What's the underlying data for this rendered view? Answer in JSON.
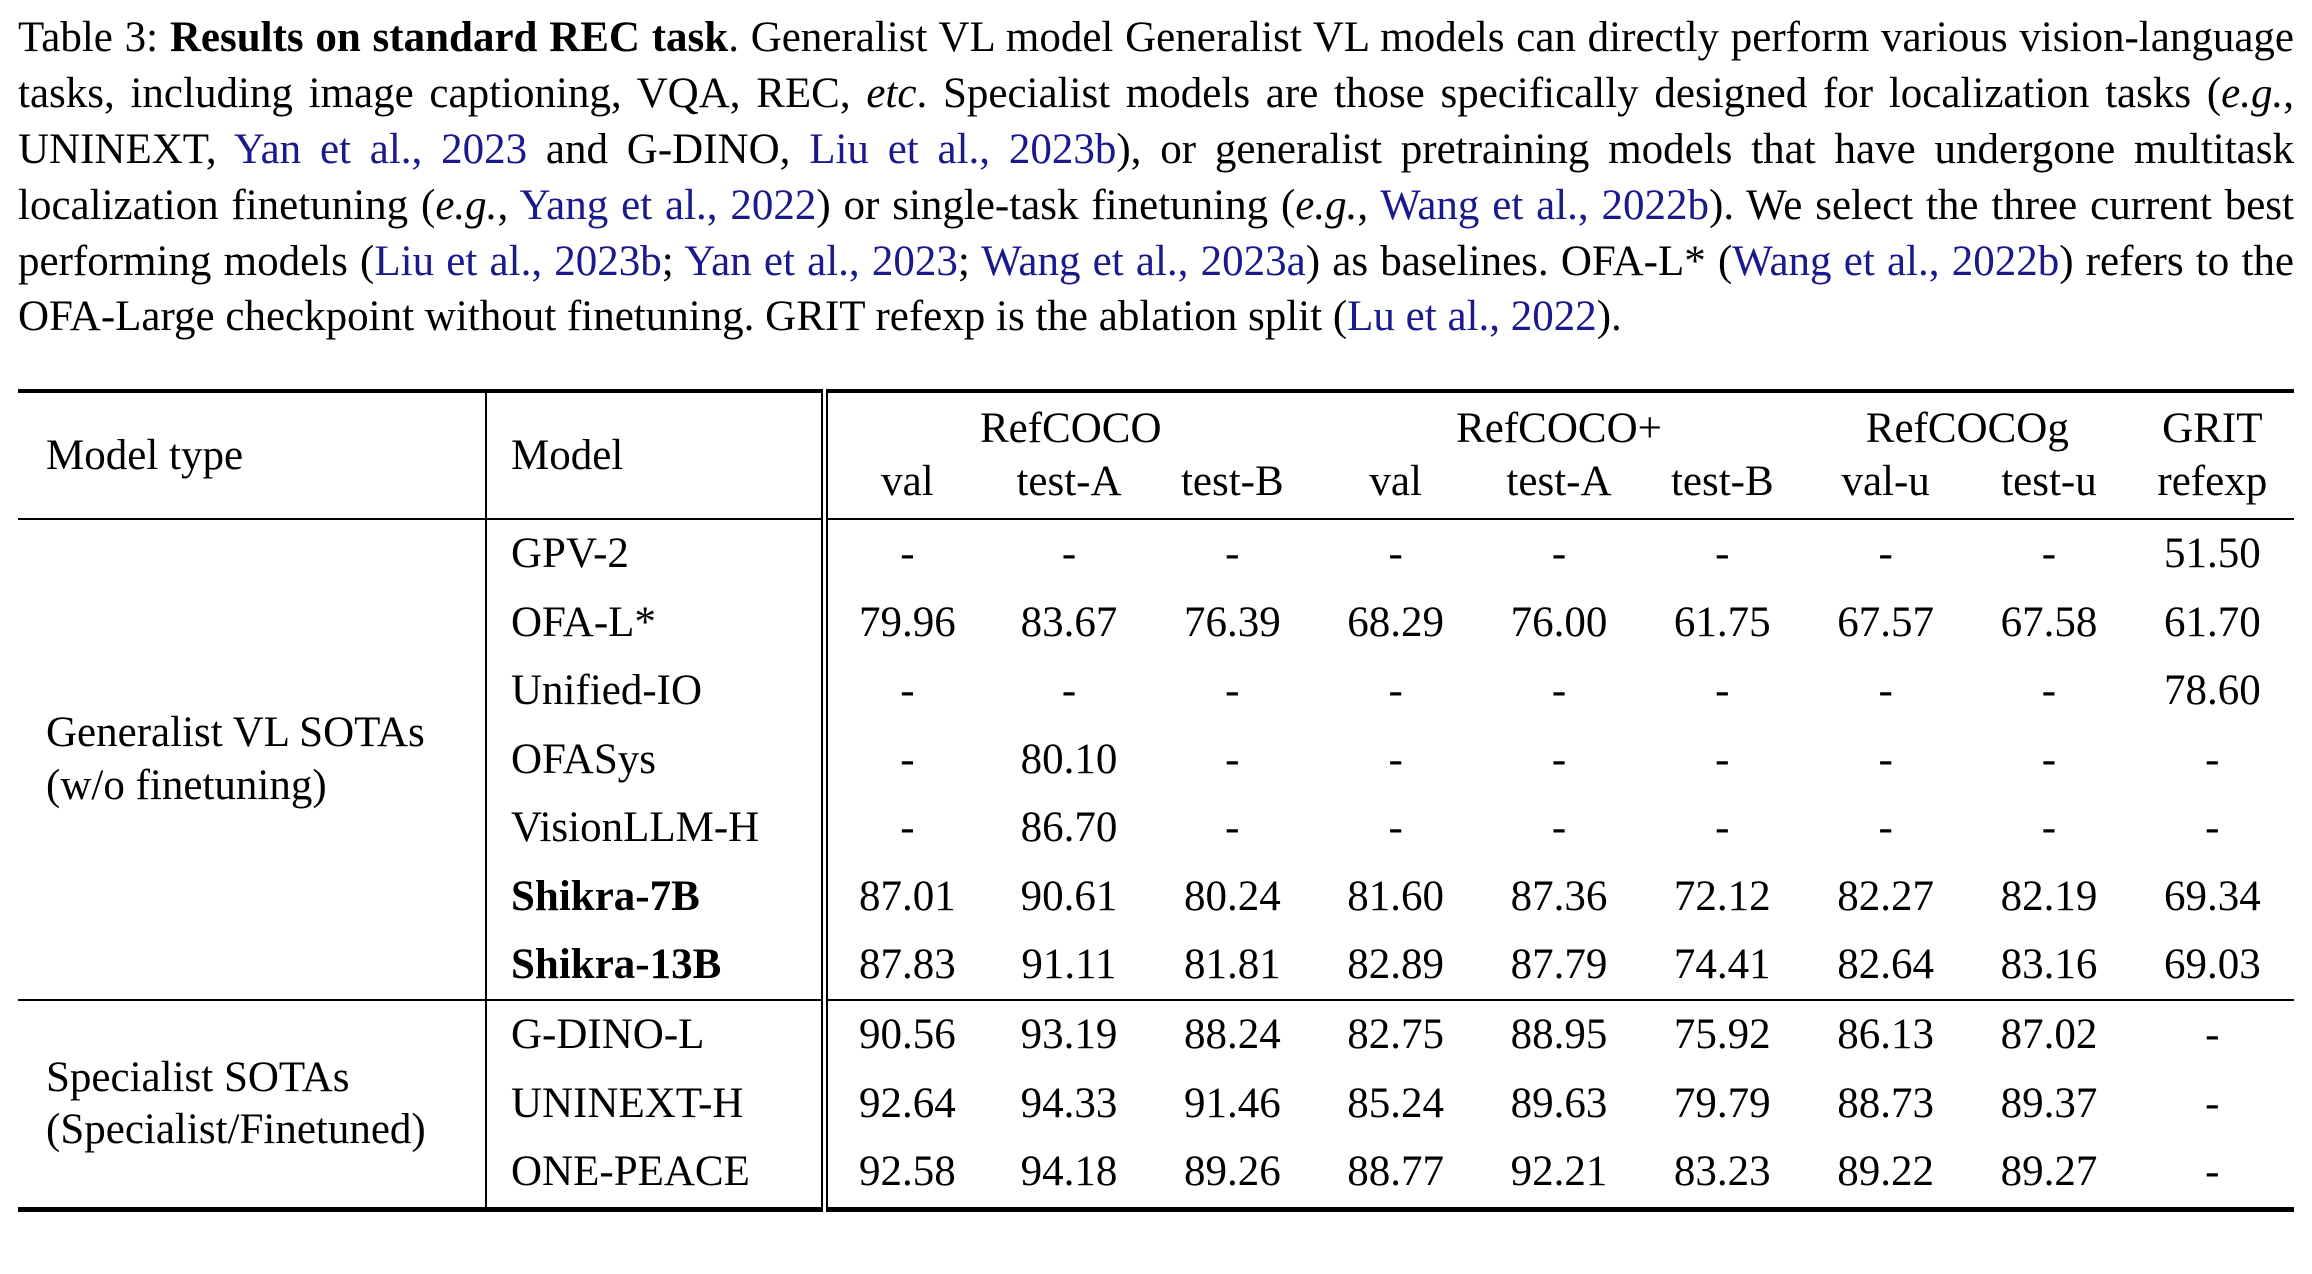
{
  "colors": {
    "link": "#1a1a8c",
    "text": "#000000",
    "background": "#ffffff"
  },
  "caption": {
    "segments": [
      {
        "t": "Table 3: ",
        "s": "normal"
      },
      {
        "t": "Results on standard REC task",
        "s": "bold"
      },
      {
        "t": ". Generalist VL model Generalist VL models can directly perform various vision-language tasks, including image captioning, VQA, REC, ",
        "s": "normal"
      },
      {
        "t": "etc",
        "s": "italic"
      },
      {
        "t": ". Specialist models are those specifically designed for localization tasks (",
        "s": "normal"
      },
      {
        "t": "e.g.",
        "s": "italic"
      },
      {
        "t": ", UNINEXT, ",
        "s": "normal"
      },
      {
        "t": "Yan et al., 2023",
        "s": "link"
      },
      {
        "t": " and G-DINO, ",
        "s": "normal"
      },
      {
        "t": "Liu et al., 2023b",
        "s": "link"
      },
      {
        "t": "), or generalist pretraining models that have undergone multitask localization finetuning (",
        "s": "normal"
      },
      {
        "t": "e.g.",
        "s": "italic"
      },
      {
        "t": ", ",
        "s": "normal"
      },
      {
        "t": "Yang et al., 2022",
        "s": "link"
      },
      {
        "t": ") or single-task finetuning (",
        "s": "normal"
      },
      {
        "t": "e.g.",
        "s": "italic"
      },
      {
        "t": ", ",
        "s": "normal"
      },
      {
        "t": "Wang et al., 2022b",
        "s": "link"
      },
      {
        "t": "). We select the three current best performing models (",
        "s": "normal"
      },
      {
        "t": "Liu et al., 2023b",
        "s": "link"
      },
      {
        "t": "; ",
        "s": "normal"
      },
      {
        "t": "Yan et al., 2023",
        "s": "link"
      },
      {
        "t": "; ",
        "s": "normal"
      },
      {
        "t": "Wang et al., 2023a",
        "s": "link"
      },
      {
        "t": ") as baselines. OFA-L* (",
        "s": "normal"
      },
      {
        "t": "Wang et al., 2022b",
        "s": "link"
      },
      {
        "t": ") refers to the OFA-Large checkpoint without finetuning. GRIT refexp is the ablation split (",
        "s": "normal"
      },
      {
        "t": "Lu et al., 2022",
        "s": "link"
      },
      {
        "t": ").",
        "s": "normal"
      }
    ]
  },
  "table": {
    "col_headers": {
      "model_type": "Model type",
      "model": "Model",
      "groups": [
        {
          "label": "RefCOCO",
          "cols": [
            "val",
            "test-A",
            "test-B"
          ]
        },
        {
          "label": "RefCOCO+",
          "cols": [
            "val",
            "test-A",
            "test-B"
          ]
        },
        {
          "label": "RefCOCOg",
          "cols": [
            "val-u",
            "test-u"
          ]
        },
        {
          "label": "GRIT",
          "cols": [
            "refexp"
          ]
        }
      ]
    },
    "groups": [
      {
        "type_label": [
          "Generalist VL SOTAs",
          "(w/o finetuning)"
        ],
        "rows": [
          {
            "model": "GPV-2",
            "bold": false,
            "values": [
              "-",
              "-",
              "-",
              "-",
              "-",
              "-",
              "-",
              "-",
              "51.50"
            ]
          },
          {
            "model": "OFA-L*",
            "bold": false,
            "values": [
              "79.96",
              "83.67",
              "76.39",
              "68.29",
              "76.00",
              "61.75",
              "67.57",
              "67.58",
              "61.70"
            ]
          },
          {
            "model": "Unified-IO",
            "bold": false,
            "values": [
              "-",
              "-",
              "-",
              "-",
              "-",
              "-",
              "-",
              "-",
              "78.60"
            ]
          },
          {
            "model": "OFASys",
            "bold": false,
            "values": [
              "-",
              "80.10",
              "-",
              "-",
              "-",
              "-",
              "-",
              "-",
              "-"
            ]
          },
          {
            "model": "VisionLLM-H",
            "bold": false,
            "values": [
              "-",
              "86.70",
              "-",
              "-",
              "-",
              "-",
              "-",
              "-",
              "-"
            ]
          },
          {
            "model": "Shikra-7B",
            "bold": true,
            "values": [
              "87.01",
              "90.61",
              "80.24",
              "81.60",
              "87.36",
              "72.12",
              "82.27",
              "82.19",
              "69.34"
            ]
          },
          {
            "model": "Shikra-13B",
            "bold": true,
            "values": [
              "87.83",
              "91.11",
              "81.81",
              "82.89",
              "87.79",
              "74.41",
              "82.64",
              "83.16",
              "69.03"
            ]
          }
        ]
      },
      {
        "type_label": [
          "Specialist SOTAs",
          "(Specialist/Finetuned)"
        ],
        "rows": [
          {
            "model": "G-DINO-L",
            "bold": false,
            "values": [
              "90.56",
              "93.19",
              "88.24",
              "82.75",
              "88.95",
              "75.92",
              "86.13",
              "87.02",
              "-"
            ]
          },
          {
            "model": "UNINEXT-H",
            "bold": false,
            "values": [
              "92.64",
              "94.33",
              "91.46",
              "85.24",
              "89.63",
              "79.79",
              "88.73",
              "89.37",
              "-"
            ]
          },
          {
            "model": "ONE-PEACE",
            "bold": false,
            "values": [
              "92.58",
              "94.18",
              "89.26",
              "88.77",
              "92.21",
              "83.23",
              "89.22",
              "89.27",
              "-"
            ]
          }
        ]
      }
    ]
  }
}
